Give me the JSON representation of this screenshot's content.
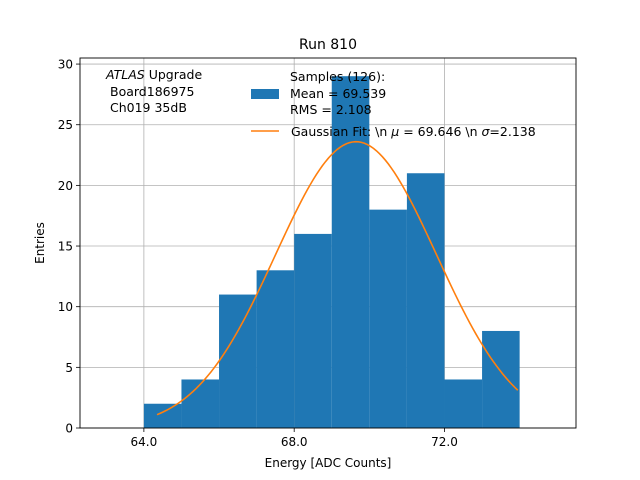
{
  "chart_data": {
    "type": "bar",
    "title": "Run 810",
    "xlabel": "Energy [ADC Counts]",
    "ylabel": "Entries",
    "xlim": [
      62.3,
      75.5
    ],
    "ylim": [
      0,
      30.5
    ],
    "xticks": [
      64.0,
      68.0,
      72.0
    ],
    "xtick_labels": [
      "64.0",
      "68.0",
      "72.0"
    ],
    "yticks": [
      0,
      5,
      10,
      15,
      20,
      25,
      30
    ],
    "ytick_labels": [
      "0",
      "5",
      "10",
      "15",
      "20",
      "25",
      "30"
    ],
    "grid": true,
    "bar_color": "#1f77b4",
    "fit_color": "#ff7f0e",
    "bins": [
      {
        "x0": 64.0,
        "x1": 65.0,
        "count": 2
      },
      {
        "x0": 65.0,
        "x1": 66.0,
        "count": 4
      },
      {
        "x0": 66.0,
        "x1": 67.0,
        "count": 11
      },
      {
        "x0": 67.0,
        "x1": 68.0,
        "count": 13
      },
      {
        "x0": 68.0,
        "x1": 69.0,
        "count": 16
      },
      {
        "x0": 69.0,
        "x1": 70.0,
        "count": 29
      },
      {
        "x0": 70.0,
        "x1": 71.0,
        "count": 18
      },
      {
        "x0": 71.0,
        "x1": 72.0,
        "count": 21
      },
      {
        "x0": 72.0,
        "x1": 73.0,
        "count": 4
      },
      {
        "x0": 73.0,
        "x1": 74.0,
        "count": 8
      }
    ],
    "fit": {
      "amplitude": 23.6,
      "mu": 69.646,
      "sigma": 2.138,
      "x_start": 64.35,
      "x_end": 73.95
    },
    "annotation": {
      "experiment": "ATLAS",
      "experiment_suffix": " Upgrade",
      "board": "Board186975",
      "channel": "Ch019 35dB"
    },
    "legend": {
      "location": "upper center",
      "samples_line1": "Samples (126):",
      "samples_line2": " Mean = 69.539",
      "samples_line3": " RMS = 2.108",
      "fit_prefix": "Gaussian Fit: \\n ",
      "fit_mu_symbol": "μ",
      "fit_mid": " = 69.646 \\n ",
      "fit_sigma_symbol": "σ",
      "fit_suffix": "=2.138"
    }
  }
}
